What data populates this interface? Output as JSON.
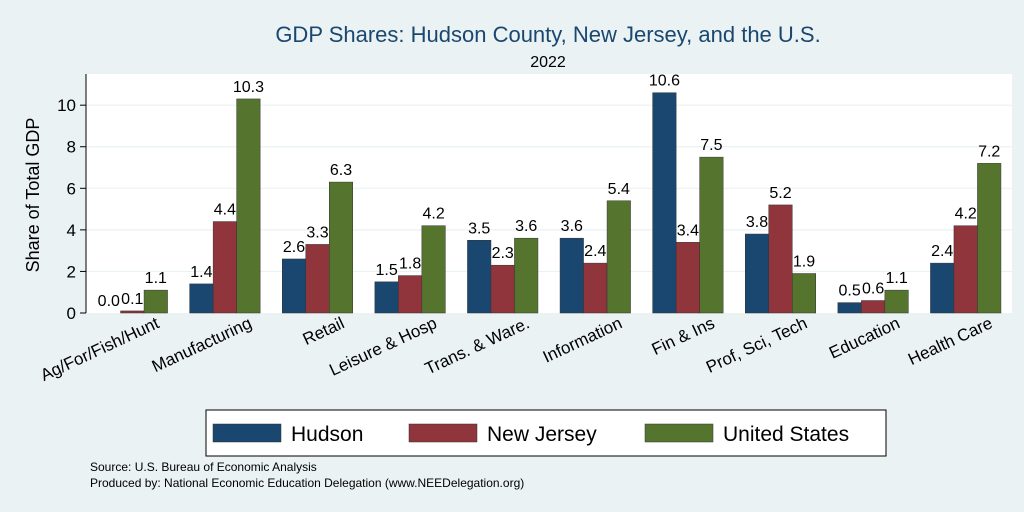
{
  "chart_data": {
    "type": "bar",
    "title": "GDP Shares: Hudson County, New Jersey, and the U.S.",
    "subtitle": "2022",
    "xlabel": "",
    "ylabel": "Share of Total GDP",
    "ylim": [
      0,
      11.5
    ],
    "yticks": [
      0,
      2,
      4,
      6,
      8,
      10
    ],
    "grid": true,
    "legend_position": "bottom",
    "categories": [
      "Ag/For/Fish/Hunt",
      "Manufacturing",
      "Retail",
      "Leisure & Hosp",
      "Trans. & Ware.",
      "Information",
      "Fin & Ins",
      "Prof, Sci, Tech",
      "Education",
      "Health Care"
    ],
    "series": [
      {
        "name": "Hudson",
        "color": "#1a476f",
        "values": [
          0.0,
          1.4,
          2.6,
          1.5,
          3.5,
          3.6,
          10.6,
          3.8,
          0.5,
          2.4
        ]
      },
      {
        "name": "New Jersey",
        "color": "#90353b",
        "values": [
          0.1,
          4.4,
          3.3,
          1.8,
          2.3,
          2.4,
          3.4,
          5.2,
          0.6,
          4.2
        ]
      },
      {
        "name": "United States",
        "color": "#55752f",
        "values": [
          1.1,
          10.3,
          6.3,
          4.2,
          3.6,
          5.4,
          7.5,
          1.9,
          1.1,
          7.2
        ]
      }
    ]
  },
  "notes": {
    "source": "Source: U.S. Bureau of Economic Analysis",
    "produced": "Produced by: National Economic Education Delegation (www.NEEDelegation.org)"
  }
}
